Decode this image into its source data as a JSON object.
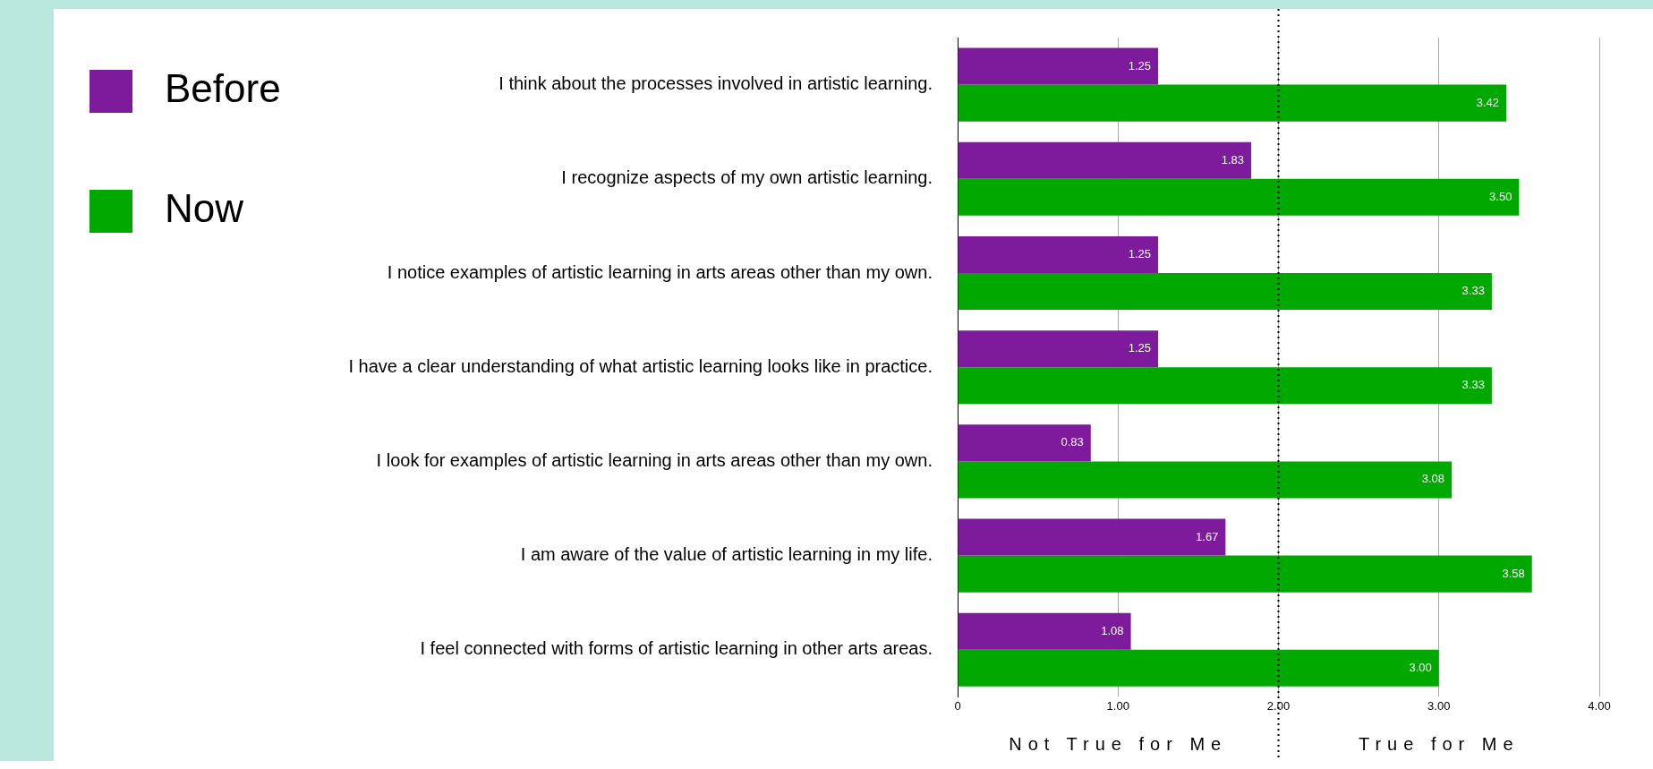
{
  "chart_data": {
    "type": "bar",
    "orientation": "horizontal",
    "categories": [
      "I think about the processes involved in artistic learning.",
      "I recognize aspects of my own artistic learning.",
      "I notice examples of artistic learning in arts areas other than my own.",
      "I have a clear understanding of what artistic learning looks like in practice.",
      "I look for examples of artistic learning in arts areas other than my own.",
      "I am aware of the value of artistic learning in my life.",
      "I feel connected with forms of artistic learning in other arts areas."
    ],
    "series": [
      {
        "name": "Before",
        "color": "#7e1a9c",
        "values": [
          1.25,
          1.83,
          1.25,
          1.25,
          0.83,
          1.67,
          1.08
        ]
      },
      {
        "name": "Now",
        "color": "#00a800",
        "values": [
          3.42,
          3.5,
          3.33,
          3.33,
          3.08,
          3.58,
          3.0
        ]
      }
    ],
    "value_labels": [
      [
        "1.25",
        "1.83",
        "1.25",
        "1.25",
        "0.83",
        "1.67",
        "1.08"
      ],
      [
        "3.42",
        "3.50",
        "3.33",
        "3.33",
        "3.08",
        "3.58",
        "3.00"
      ]
    ],
    "xlim": [
      0,
      4
    ],
    "xticks": [
      0,
      {
        "value": 1,
        "label": "1.00"
      },
      {
        "value": 2,
        "label": "2.00"
      },
      {
        "value": 3,
        "label": "3.00"
      },
      {
        "value": 4,
        "label": "4.00"
      }
    ],
    "grid": "x",
    "legend": "top left",
    "ref_lines": [
      {
        "axis": "x",
        "value": 2,
        "color": "#000000",
        "line_style": "dotted"
      }
    ],
    "annotations": [
      "Not True for Me",
      "True for Me"
    ]
  }
}
